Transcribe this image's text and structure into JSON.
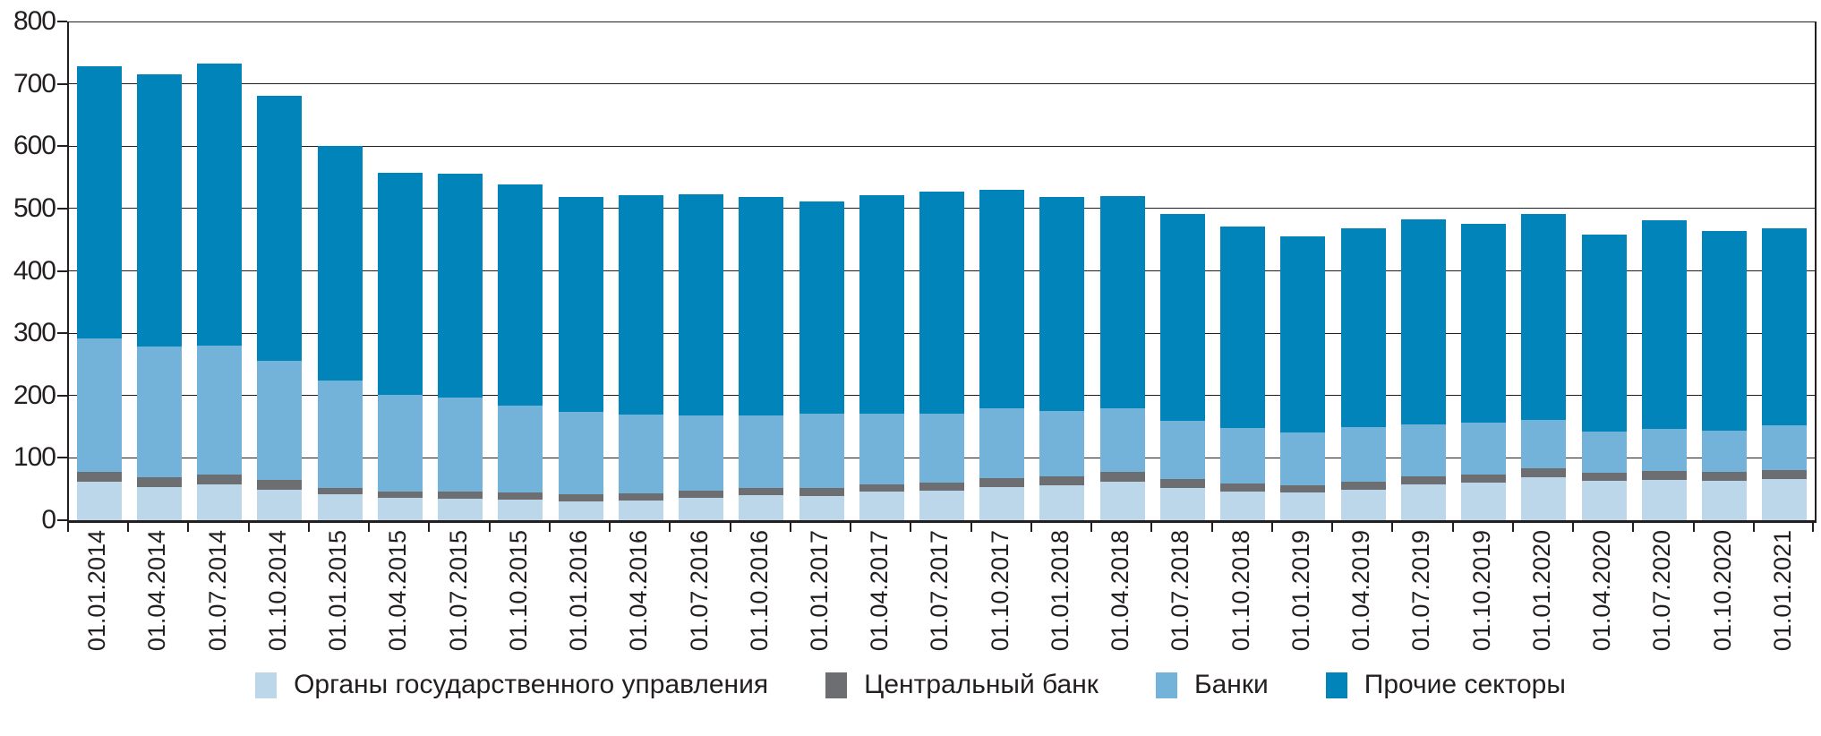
{
  "chart_data": {
    "type": "bar",
    "stacked": true,
    "title": "",
    "xlabel": "",
    "ylabel": "",
    "ylim": [
      0,
      800
    ],
    "ytick_step": 100,
    "grid": true,
    "legend_position": "bottom",
    "categories": [
      "01.01.2014",
      "01.04.2014",
      "01.07.2014",
      "01.10.2014",
      "01.01.2015",
      "01.04.2015",
      "01.07.2015",
      "01.10.2015",
      "01.01.2016",
      "01.04.2016",
      "01.07.2016",
      "01.10.2016",
      "01.01.2017",
      "01.04.2017",
      "01.07.2017",
      "01.10.2017",
      "01.01.2018",
      "01.04.2018",
      "01.07.2018",
      "01.10.2018",
      "01.01.2019",
      "01.04.2019",
      "01.07.2019",
      "01.10.2019",
      "01.01.2020",
      "01.04.2020",
      "01.07.2020",
      "01.10.2020",
      "01.01.2021"
    ],
    "series": [
      {
        "name": "Органы государственного управления",
        "color": "#bdd7ea",
        "values": [
          61.7,
          53.6,
          57.1,
          48.3,
          41.6,
          35.9,
          35.2,
          33.2,
          30.6,
          32.1,
          36.5,
          40.2,
          39.2,
          45.6,
          47.9,
          52.9,
          55.6,
          62.1,
          52.0,
          46.1,
          43.9,
          49.5,
          57.2,
          60.0,
          69.6,
          62.5,
          65.0,
          62.5,
          65.5
        ]
      },
      {
        "name": "Центральный банк",
        "color": "#6d6e71",
        "values": [
          15.9,
          16.0,
          15.7,
          15.7,
          10.4,
          10.6,
          11.0,
          11.4,
          11.0,
          11.2,
          11.1,
          11.8,
          12.3,
          11.9,
          12.9,
          14.6,
          14.9,
          15.0,
          14.2,
          12.5,
          12.0,
          12.6,
          13.0,
          13.7,
          14.2,
          13.3,
          13.9,
          14.5,
          15.2
        ]
      },
      {
        "name": "Банки",
        "color": "#74b3d9",
        "values": [
          214.4,
          209.6,
          206.9,
          192.0,
          171.5,
          154.8,
          150.0,
          139.6,
          131.7,
          126.3,
          121.0,
          115.4,
          119.4,
          113.3,
          109.7,
          111.7,
          104.5,
          102.0,
          93.0,
          90.0,
          84.6,
          88.0,
          84.0,
          83.0,
          76.8,
          67.0,
          67.0,
          67.0,
          71.5
        ]
      },
      {
        "name": "Прочие секторы",
        "color": "#0084ba",
        "values": [
          436.8,
          436.6,
          453.2,
          424.9,
          376.4,
          355.6,
          359.3,
          354.0,
          345.8,
          351.4,
          353.9,
          351.3,
          340.9,
          350.7,
          356.9,
          351.3,
          343.4,
          340.9,
          331.5,
          322.0,
          314.3,
          317.9,
          328.2,
          319.3,
          331.2,
          315.5,
          335.4,
          320.5,
          315.8
        ]
      }
    ]
  },
  "style": {
    "grid_color": "#231f20",
    "text_color": "#231f20",
    "background": "#ffffff"
  }
}
